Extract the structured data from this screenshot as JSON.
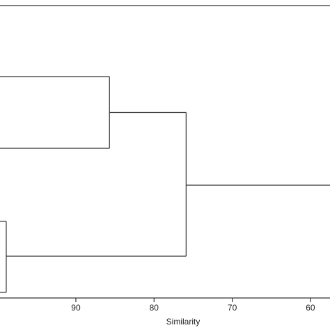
{
  "chart_data": {
    "type": "dendrogram",
    "orientation": "horizontal",
    "xlabel": "Similarity",
    "xlim": [
      99.7,
      57.5
    ],
    "x_axis_reversed": true,
    "ticks": [
      90,
      80,
      70,
      60
    ],
    "tick_labels": [
      "90",
      "80",
      "70",
      "60"
    ],
    "merges": [
      {
        "id": "c1",
        "similarity": 85.7,
        "note": "merges two upper leaves"
      },
      {
        "id": "c2",
        "similarity": 98.9,
        "note": "merges two lower leaves"
      },
      {
        "id": "c3",
        "similarity": 75.9,
        "note": "joins c1 and c2"
      },
      {
        "id": "c4",
        "similarity": 57.5,
        "note": "joins c3 with top group (extends beyond visible area)"
      }
    ],
    "grid": false
  }
}
